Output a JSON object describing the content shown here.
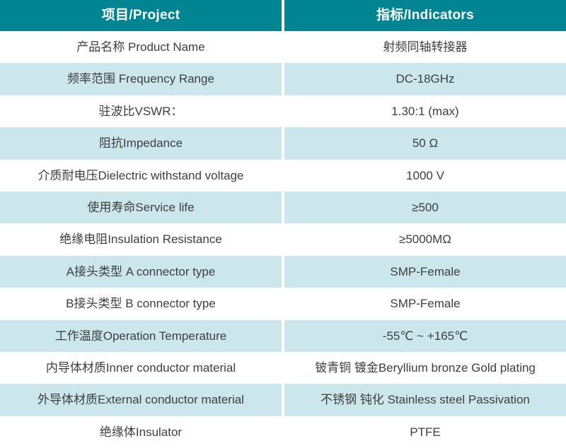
{
  "theme": {
    "header_bg": "#028593",
    "header_fg": "#ffffff",
    "alt_row_bg": "#cce7ec",
    "body_fg": "#3e3e3e"
  },
  "table": {
    "columns": {
      "project": "项目/Project",
      "indicators": "指标/Indicators"
    },
    "rows": [
      {
        "project": "产品名称 Product Name",
        "indicator": "射频同轴转接器"
      },
      {
        "project": "频率范围 Frequency Range",
        "indicator": "DC-18GHz"
      },
      {
        "project": "驻波比VSWR：",
        "indicator": "1.30:1 (max)"
      },
      {
        "project": "阻抗Impedance",
        "indicator": "50 Ω"
      },
      {
        "project": "介质耐电压Dielectric withstand voltage",
        "indicator": "1000 V"
      },
      {
        "project": "使用寿命Service life",
        "indicator": "≥500"
      },
      {
        "project": "绝缘电阻Insulation Resistance",
        "indicator": "≥5000MΩ"
      },
      {
        "project": "A接头类型 A connector type",
        "indicator": "SMP-Female"
      },
      {
        "project": "B接头类型 B connector type",
        "indicator": "SMP-Female"
      },
      {
        "project": "工作温度Operation Temperature",
        "indicator": "-55℃ ~ +165℃"
      },
      {
        "project": "内导体材质Inner conductor material",
        "indicator": "铍青铜 镀金Beryllium bronze Gold plating"
      },
      {
        "project": "外导体材质External conductor material",
        "indicator": "不锈钢 钝化 Stainless steel Passivation"
      },
      {
        "project": "绝缘体Insulator",
        "indicator": "PTFE"
      }
    ]
  }
}
